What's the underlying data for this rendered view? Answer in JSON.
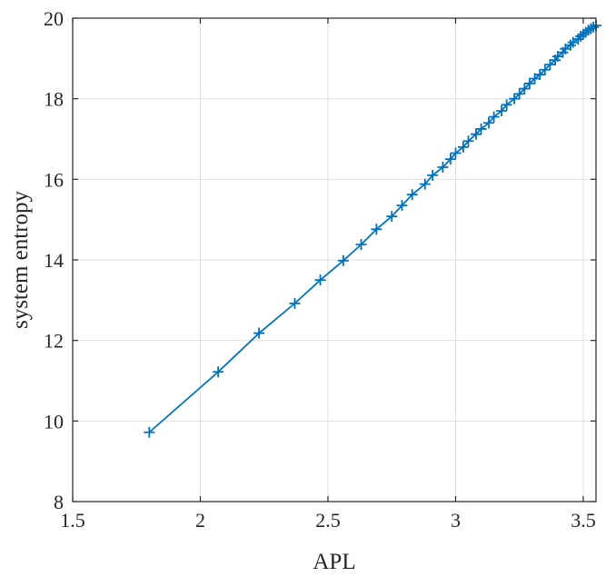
{
  "chart_data": {
    "type": "line",
    "title": "",
    "xlabel": "APL",
    "ylabel": "system entropy",
    "xlim": [
      1.5,
      3.55
    ],
    "ylim": [
      8,
      20
    ],
    "xticks": [
      1.5,
      2,
      2.5,
      3,
      3.5
    ],
    "yticks": [
      8,
      10,
      12,
      14,
      16,
      18,
      20
    ],
    "xtick_labels": [
      "1.5",
      "2",
      "2.5",
      "3",
      "3.5"
    ],
    "ytick_labels": [
      "8",
      "10",
      "12",
      "14",
      "16",
      "18",
      "20"
    ],
    "grid": true,
    "color": "#0072bd",
    "marker": "plus",
    "series": [
      {
        "x": [
          1.8,
          2.07,
          2.23,
          2.37,
          2.47,
          2.56,
          2.63,
          2.69,
          2.75,
          2.79,
          2.83,
          2.88,
          2.91,
          2.95,
          2.98,
          3.0,
          3.03,
          3.05,
          3.08,
          3.1,
          3.13,
          3.15,
          3.18,
          3.2,
          3.23,
          3.25,
          3.27,
          3.29,
          3.31,
          3.33,
          3.35,
          3.37,
          3.39,
          3.4,
          3.42,
          3.43,
          3.45,
          3.46,
          3.48,
          3.49,
          3.5,
          3.51,
          3.52,
          3.53,
          3.54,
          3.55
        ],
        "y": [
          9.72,
          11.22,
          12.18,
          12.92,
          13.5,
          13.98,
          14.38,
          14.76,
          15.08,
          15.35,
          15.62,
          15.88,
          16.1,
          16.3,
          16.5,
          16.65,
          16.8,
          16.95,
          17.12,
          17.25,
          17.4,
          17.55,
          17.7,
          17.85,
          18.0,
          18.12,
          18.25,
          18.38,
          18.5,
          18.6,
          18.72,
          18.85,
          18.96,
          19.05,
          19.15,
          19.24,
          19.33,
          19.4,
          19.48,
          19.55,
          19.6,
          19.65,
          19.7,
          19.74,
          19.78,
          19.82
        ]
      }
    ]
  }
}
